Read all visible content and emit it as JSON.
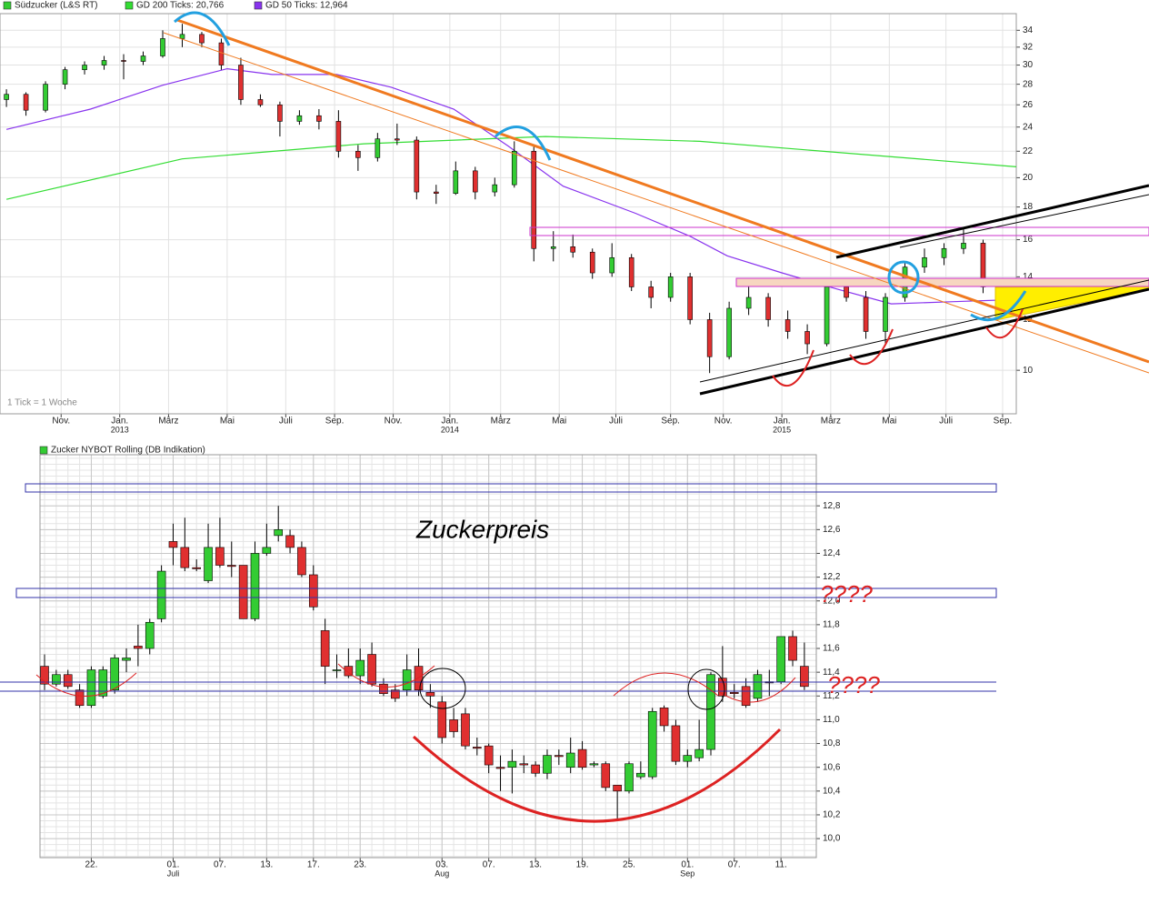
{
  "chart_data": [
    {
      "type": "candlestick",
      "log_scale": true,
      "grid": true,
      "up_color": "#33cc33",
      "down_color": "#e03030",
      "note": "1 Tick = 1 Woche",
      "xlim": [
        -0.33,
        51.7
      ],
      "ylim": [
        8.55,
        36.1
      ],
      "yticks": [
        10,
        12,
        14,
        16,
        18,
        20,
        22,
        24,
        26,
        28,
        30,
        32,
        34
      ],
      "xticks": [
        {
          "value": 2.8,
          "label": "Nov."
        },
        {
          "value": 5.8,
          "label": "Jan."
        },
        {
          "value": 8.3,
          "label": "März"
        },
        {
          "value": 11.3,
          "label": "Mai"
        },
        {
          "value": 14.3,
          "label": "Juli"
        },
        {
          "value": 16.8,
          "label": "Sep."
        },
        {
          "value": 19.8,
          "label": "Nov."
        },
        {
          "value": 22.7,
          "label": "Jan."
        },
        {
          "value": 25.3,
          "label": "März"
        },
        {
          "value": 28.3,
          "label": "Mai"
        },
        {
          "value": 31.2,
          "label": "Juli"
        },
        {
          "value": 34,
          "label": "Sep."
        },
        {
          "value": 36.7,
          "label": "Nov."
        },
        {
          "value": 39.7,
          "label": "Jan."
        },
        {
          "value": 42.2,
          "label": "März"
        },
        {
          "value": 45.2,
          "label": "Mai"
        },
        {
          "value": 48.1,
          "label": "Juli"
        },
        {
          "value": 51,
          "label": "Sep."
        }
      ],
      "xsublabels": [
        {
          "value": 5.8,
          "label": "2013"
        },
        {
          "value": 22.7,
          "label": "2014"
        },
        {
          "value": 39.7,
          "label": "2015"
        }
      ],
      "series": [
        {
          "name": "Südzucker (L&S RT)",
          "color": "#33cc33",
          "ohlc": [
            [
              26.5,
              27.5,
              25.8,
              27
            ],
            [
              27,
              27.2,
              25,
              25.5
            ],
            [
              25.5,
              28.3,
              25.3,
              28
            ],
            [
              28,
              29.8,
              27.5,
              29.5
            ],
            [
              29.5,
              30.4,
              29,
              30
            ],
            [
              30,
              31,
              29.5,
              30.5
            ],
            [
              30.5,
              31.2,
              28.5,
              30.4
            ],
            [
              30.4,
              31.5,
              30,
              31
            ],
            [
              31,
              34,
              30.8,
              33
            ],
            [
              33,
              34.8,
              32,
              33.5
            ],
            [
              33.5,
              33.8,
              32,
              32.5
            ],
            [
              32.5,
              33,
              29.5,
              30
            ],
            [
              30,
              30.8,
              26,
              26.5
            ],
            [
              26.5,
              27,
              25.8,
              26
            ],
            [
              26,
              26.3,
              23.2,
              24.5
            ],
            [
              24.5,
              25.5,
              24.2,
              25
            ],
            [
              25,
              25.6,
              23.8,
              24.5
            ],
            [
              24.5,
              25.5,
              21.5,
              22
            ],
            [
              22,
              22.5,
              20.5,
              21.5
            ],
            [
              21.5,
              23.5,
              21.2,
              23
            ],
            [
              23,
              24.3,
              22.5,
              22.9
            ],
            [
              22.9,
              23.2,
              18.5,
              19
            ],
            [
              19,
              19.5,
              18.2,
              18.9
            ],
            [
              18.9,
              21.2,
              18.8,
              20.5
            ],
            [
              20.5,
              20.8,
              18.5,
              19
            ],
            [
              19,
              20,
              18.7,
              19.5
            ],
            [
              19.5,
              22.8,
              19.3,
              22
            ],
            [
              22,
              22.5,
              14.8,
              15.5
            ],
            [
              15.5,
              16.5,
              14.8,
              15.6
            ],
            [
              15.6,
              16.3,
              15,
              15.3
            ],
            [
              15.3,
              15.5,
              13.9,
              14.2
            ],
            [
              14.2,
              15.8,
              14,
              15
            ],
            [
              15,
              15.2,
              13.3,
              13.5
            ],
            [
              13.5,
              13.8,
              12.5,
              13
            ],
            [
              13,
              14.2,
              12.8,
              14
            ],
            [
              14,
              14.2,
              11.8,
              12
            ],
            [
              12,
              12.3,
              9.9,
              10.5
            ],
            [
              10.5,
              12.8,
              10.4,
              12.5
            ],
            [
              12.5,
              13.6,
              12.2,
              13
            ],
            [
              13,
              13.2,
              11.7,
              12
            ],
            [
              12,
              12.4,
              11.2,
              11.5
            ],
            [
              11.5,
              11.8,
              10.6,
              11
            ],
            [
              11,
              13.8,
              10.9,
              13.5
            ],
            [
              13.5,
              13.9,
              12.8,
              13
            ],
            [
              13,
              13.3,
              11.2,
              11.5
            ],
            [
              11.5,
              13.2,
              11,
              13
            ],
            [
              13,
              14.8,
              12.8,
              14.5
            ],
            [
              14.5,
              15.5,
              14.2,
              15
            ],
            [
              15,
              15.8,
              14.6,
              15.5
            ],
            [
              15.5,
              16.6,
              15.2,
              15.8
            ],
            [
              15.8,
              16,
              13.2,
              13.5
            ],
            [
              13.2,
              13.8,
              12.5,
              13.3
            ]
          ]
        },
        {
          "name": "GD 200 Ticks: 20,766",
          "color": "#33dd33",
          "x": [
            0,
            9,
            18.3,
            27.6,
            35.5,
            51.7
          ],
          "values": [
            18.5,
            21.4,
            22.6,
            23.2,
            22.8,
            20.8
          ]
        },
        {
          "name": "GD 50 Ticks: 12,964",
          "color": "#8833ee",
          "x": [
            0,
            4.3,
            8,
            11.3,
            13.6,
            16.9,
            19.7,
            22.9,
            25.7,
            28.5,
            32.2,
            35,
            36.9,
            39.7,
            42.5,
            45.3,
            48.5,
            51.7
          ],
          "values": [
            23.8,
            25.6,
            27.9,
            29.6,
            29,
            29,
            27.7,
            25.6,
            22.4,
            19.4,
            17.6,
            16.2,
            15.1,
            14.2,
            13.4,
            12.7,
            12.8,
            12.9
          ]
        }
      ]
    },
    {
      "type": "candlestick",
      "grid": true,
      "up_color": "#33cc33",
      "down_color": "#e03030",
      "annotations": [
        "Zuckerpreis",
        "????",
        "????"
      ],
      "xlim": [
        -0.39,
        66.02
      ],
      "ylim": [
        9.84,
        13.23
      ],
      "yticks": [
        {
          "value": 10,
          "label": "10,0"
        },
        {
          "value": 10.2,
          "label": "10,2"
        },
        {
          "value": 10.4,
          "label": "10,4"
        },
        {
          "value": 10.6,
          "label": "10,6"
        },
        {
          "value": 10.8,
          "label": "10,8"
        },
        {
          "value": 11,
          "label": "11,0"
        },
        {
          "value": 11.2,
          "label": "11,2"
        },
        {
          "value": 11.4,
          "label": "11,4"
        },
        {
          "value": 11.6,
          "label": "11,6"
        },
        {
          "value": 11.8,
          "label": "11,8"
        },
        {
          "value": 12,
          "label": "12,0"
        },
        {
          "value": 12.2,
          "label": "12,2"
        },
        {
          "value": 12.4,
          "label": "12,4"
        },
        {
          "value": 12.6,
          "label": "12,6"
        },
        {
          "value": 12.8,
          "label": "12,8"
        }
      ],
      "xticks": [
        {
          "value": 4,
          "label": "22."
        },
        {
          "value": 11,
          "label": "01."
        },
        {
          "value": 15,
          "label": "07."
        },
        {
          "value": 19,
          "label": "13."
        },
        {
          "value": 23,
          "label": "17."
        },
        {
          "value": 27,
          "label": "23."
        },
        {
          "value": 34,
          "label": "03."
        },
        {
          "value": 38,
          "label": "07."
        },
        {
          "value": 42,
          "label": "13."
        },
        {
          "value": 46,
          "label": "19."
        },
        {
          "value": 50,
          "label": "25."
        },
        {
          "value": 55,
          "label": "01."
        },
        {
          "value": 59,
          "label": "07."
        },
        {
          "value": 63,
          "label": "11."
        }
      ],
      "xsublabels": [
        {
          "value": 11,
          "label": "Juli"
        },
        {
          "value": 34,
          "label": "Aug"
        },
        {
          "value": 55,
          "label": "Sep"
        }
      ],
      "series": [
        {
          "name": "Zucker NYBOT Rolling (DB Indikation)",
          "color": "#33cc33",
          "ohlc": [
            [
              11.45,
              11.55,
              11.25,
              11.3
            ],
            [
              11.3,
              11.42,
              11.28,
              11.38
            ],
            [
              11.38,
              11.42,
              11.26,
              11.28
            ],
            [
              11.25,
              11.3,
              11.1,
              11.12
            ],
            [
              11.12,
              11.45,
              11.1,
              11.42
            ],
            [
              11.2,
              11.45,
              11.18,
              11.42
            ],
            [
              11.25,
              11.55,
              11.22,
              11.52
            ],
            [
              11.5,
              11.6,
              11.4,
              11.52
            ],
            [
              11.62,
              11.8,
              11.45,
              11.6
            ],
            [
              11.6,
              11.85,
              11.55,
              11.82
            ],
            [
              11.85,
              12.3,
              11.82,
              12.25
            ],
            [
              12.5,
              12.65,
              12.3,
              12.45
            ],
            [
              12.45,
              12.7,
              12.25,
              12.28
            ],
            [
              12.28,
              12.35,
              12.25,
              12.27
            ],
            [
              12.17,
              12.65,
              12.15,
              12.45
            ],
            [
              12.45,
              12.7,
              12.28,
              12.3
            ],
            [
              12.3,
              12.5,
              12.2,
              12.29
            ],
            [
              12.3,
              12.3,
              11.85,
              11.85
            ],
            [
              11.85,
              12.5,
              11.83,
              12.4
            ],
            [
              12.4,
              12.65,
              12.38,
              12.45
            ],
            [
              12.55,
              12.8,
              12.5,
              12.6
            ],
            [
              12.55,
              12.6,
              12.4,
              12.45
            ],
            [
              12.45,
              12.5,
              12.2,
              12.22
            ],
            [
              12.22,
              12.3,
              11.92,
              11.95
            ],
            [
              11.75,
              11.85,
              11.3,
              11.45
            ],
            [
              11.42,
              11.55,
              11.35,
              11.42
            ],
            [
              11.45,
              11.6,
              11.35,
              11.37
            ],
            [
              11.37,
              11.6,
              11.3,
              11.5
            ],
            [
              11.55,
              11.65,
              11.28,
              11.3
            ],
            [
              11.3,
              11.35,
              11.2,
              11.22
            ],
            [
              11.25,
              11.3,
              11.15,
              11.18
            ],
            [
              11.25,
              11.55,
              11.2,
              11.42
            ],
            [
              11.45,
              11.6,
              11.2,
              11.25
            ],
            [
              11.23,
              11.3,
              11.1,
              11.2
            ],
            [
              11.15,
              11.2,
              10.8,
              10.85
            ],
            [
              11,
              11.1,
              10.85,
              10.9
            ],
            [
              11.05,
              11.1,
              10.75,
              10.78
            ],
            [
              10.77,
              10.85,
              10.7,
              10.76
            ],
            [
              10.78,
              10.8,
              10.55,
              10.62
            ],
            [
              10.6,
              10.7,
              10.4,
              10.59
            ],
            [
              10.6,
              10.75,
              10.38,
              10.65
            ],
            [
              10.63,
              10.7,
              10.55,
              10.62
            ],
            [
              10.62,
              10.65,
              10.52,
              10.55
            ],
            [
              10.55,
              10.75,
              10.5,
              10.7
            ],
            [
              10.7,
              10.75,
              10.62,
              10.69
            ],
            [
              10.6,
              10.85,
              10.55,
              10.72
            ],
            [
              10.75,
              10.82,
              10.58,
              10.6
            ],
            [
              10.62,
              10.65,
              10.6,
              10.63
            ],
            [
              10.63,
              10.65,
              10.4,
              10.43
            ],
            [
              10.45,
              10.45,
              10.15,
              10.4
            ],
            [
              10.4,
              10.65,
              10.38,
              10.63
            ],
            [
              10.52,
              10.65,
              10.5,
              10.55
            ],
            [
              10.52,
              11.1,
              10.5,
              11.07
            ],
            [
              11.1,
              11.12,
              10.9,
              10.95
            ],
            [
              10.95,
              11,
              10.62,
              10.65
            ],
            [
              10.65,
              10.75,
              10.6,
              10.7
            ],
            [
              10.68,
              11,
              10.65,
              10.75
            ],
            [
              10.75,
              11.4,
              10.7,
              11.38
            ],
            [
              11.35,
              11.62,
              11.15,
              11.2
            ],
            [
              11.23,
              11.3,
              11.18,
              11.22
            ],
            [
              11.28,
              11.35,
              11.1,
              11.12
            ],
            [
              11.18,
              11.42,
              11.15,
              11.38
            ],
            [
              11.32,
              11.42,
              11.2,
              11.31
            ],
            [
              11.32,
              11.7,
              11.3,
              11.7
            ],
            [
              11.7,
              11.75,
              11.45,
              11.5
            ],
            [
              11.45,
              11.65,
              11.25,
              11.28
            ]
          ]
        }
      ]
    }
  ]
}
